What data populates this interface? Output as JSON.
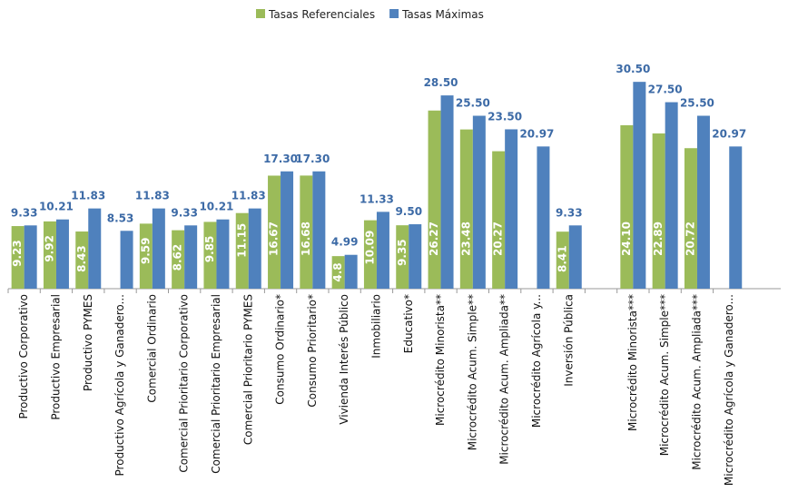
{
  "chart_data": {
    "type": "bar",
    "categories": [
      "Productivo Corporativo",
      "Productivo Empresarial",
      "Productivo PYMES",
      "Productivo Agrícola y Ganadero...",
      "Comercial Ordinario",
      "Comercial Prioritario Corporativo",
      "Comercial Prioritario Empresarial",
      "Comercial Prioritario PYMES",
      "Consumo Ordinario*",
      "Consumo Prioritario*",
      "Vivienda Interés Público",
      "Inmobiliario",
      "Educativo*",
      "Microcrédito Minorista**",
      "Microcrédito Acum. Simple**",
      "Microcrédito Acum. Ampliada**",
      "Microcrédito Agrícola y...",
      "Inversión Pública",
      null,
      "Microcrédito Minorista***",
      "Microcrédito Acum. Simple***",
      "Microcrédito Acum. Ampliada***",
      "Microcrédito Agrícola y Ganadero..."
    ],
    "series": [
      {
        "name": "Tasas Referenciales",
        "color": "#9bbb59",
        "values": [
          9.23,
          9.92,
          8.43,
          null,
          9.59,
          8.62,
          9.85,
          11.15,
          16.67,
          16.68,
          4.8,
          10.09,
          9.35,
          26.27,
          23.48,
          20.27,
          null,
          8.41,
          null,
          24.1,
          22.89,
          20.72,
          null
        ],
        "value_labels": [
          "9.23",
          "9.92",
          "8.43",
          null,
          "9.59",
          "8.62",
          "9.85",
          "11.15",
          "16.67",
          "16.68",
          "4.8",
          "10.09",
          "9.35",
          "26.27",
          "23.48",
          "20.27",
          null,
          "8.41",
          null,
          "24.10",
          "22.89",
          "20.72",
          null
        ]
      },
      {
        "name": "Tasas Máximas",
        "color": "#4f81bd",
        "values": [
          9.33,
          10.21,
          11.83,
          8.53,
          11.83,
          9.33,
          10.21,
          11.83,
          17.3,
          17.3,
          4.99,
          11.33,
          9.5,
          28.5,
          25.5,
          23.5,
          20.97,
          9.33,
          null,
          30.5,
          27.5,
          25.5,
          20.97
        ],
        "value_labels": [
          "9.33",
          "10.21",
          "11.83",
          "8.53",
          "11.83",
          "9.33",
          "10.21",
          "11.83",
          "17.30",
          "17.30",
          "4.99",
          "11.33",
          "9.50",
          "28.50",
          "25.50",
          "23.50",
          "20.97",
          "9.33",
          null,
          "30.50",
          "27.50",
          "25.50",
          "20.97"
        ]
      }
    ],
    "legend": "top"
  }
}
